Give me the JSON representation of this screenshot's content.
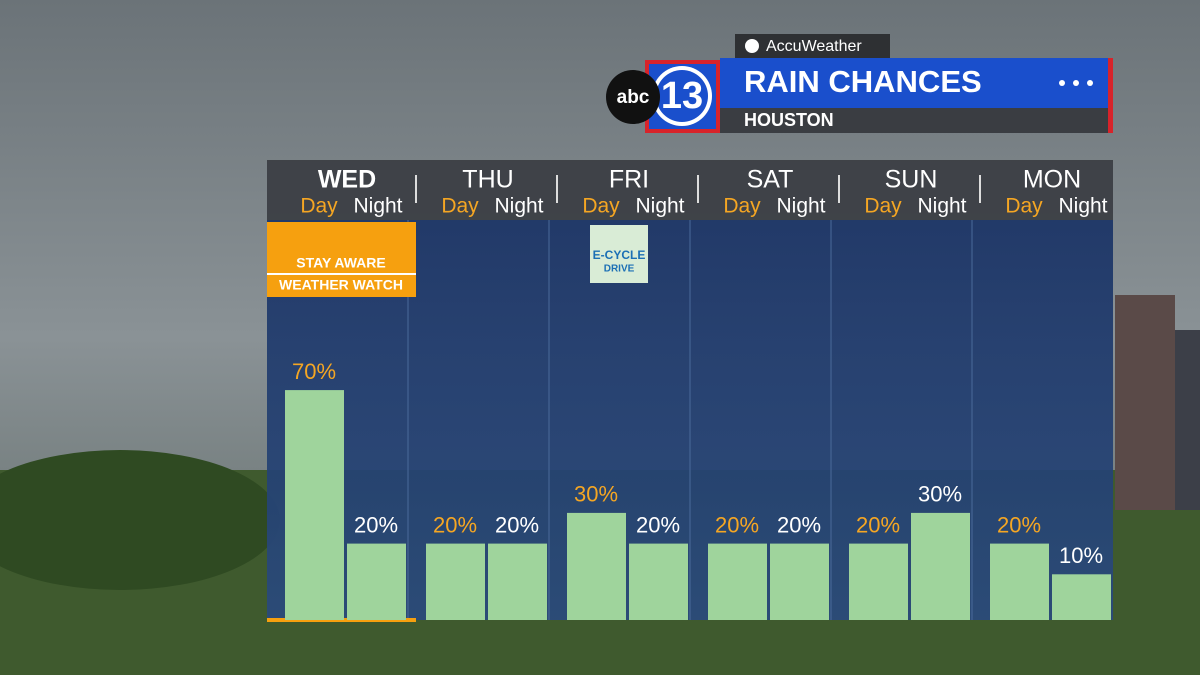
{
  "brand": {
    "provider": "AccuWeather",
    "network": "abc",
    "channel": "13"
  },
  "banner": {
    "title": "RAIN CHANCES",
    "subtitle": "HOUSTON"
  },
  "alert": {
    "line1": "STAY AWARE",
    "line2": "WEATHER WATCH"
  },
  "badge": {
    "line1": "E-CYCLE",
    "line2": "DRIVE"
  },
  "chart_data": {
    "type": "bar",
    "categories": [
      "WED",
      "THU",
      "FRI",
      "SAT",
      "SUN",
      "MON"
    ],
    "series": [
      {
        "name": "Day",
        "color": "#9fd49c",
        "values": [
          70,
          20,
          30,
          20,
          20,
          20
        ],
        "value_labels": [
          "70%",
          "20%",
          "30%",
          "20%",
          "20%",
          "20%"
        ]
      },
      {
        "name": "Night",
        "color": "#9fd49c",
        "values": [
          20,
          20,
          20,
          20,
          30,
          10
        ],
        "value_labels": [
          "20%",
          "20%",
          "20%",
          "20%",
          "30%",
          "10%"
        ]
      }
    ]
  }
}
